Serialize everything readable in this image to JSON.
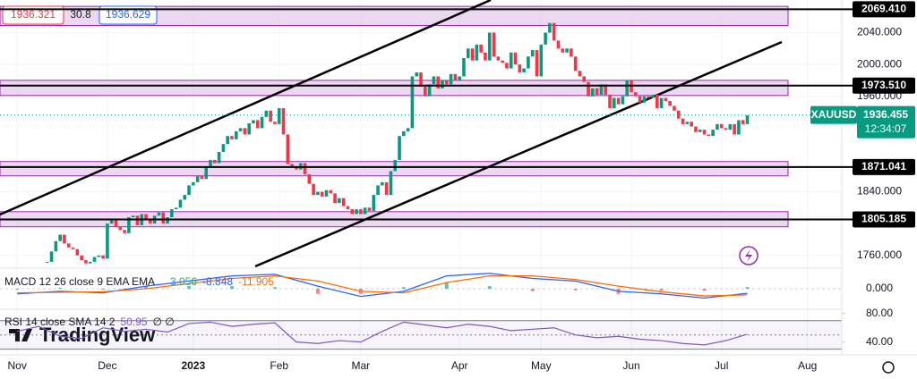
{
  "chart_data": [
    {
      "type": "candlestick",
      "symbol": "XAUUSD",
      "bid": 1936.321,
      "spread": 30.8,
      "ask": 1936.629,
      "last": 1936.455,
      "countdown": "12:34:07",
      "up_color": "#089981",
      "down_color": "#f23645",
      "zone_color": "#e1bee7",
      "xlim": [
        -4,
        192
      ],
      "xticks": [
        {
          "value": 0,
          "label": "Nov"
        },
        {
          "value": 21,
          "label": "Dec"
        },
        {
          "value": 41,
          "label": "2023"
        },
        {
          "value": 61,
          "label": "Feb"
        },
        {
          "value": 80,
          "label": "Mar"
        },
        {
          "value": 103,
          "label": "Apr"
        },
        {
          "value": 122,
          "label": "May"
        },
        {
          "value": 143,
          "label": "Jun"
        },
        {
          "value": 164,
          "label": "Jul"
        },
        {
          "value": 184,
          "label": "Aug"
        }
      ],
      "ylim": [
        1744,
        2081
      ],
      "yticks": [
        {
          "value": 1760,
          "label": "1760.000"
        },
        {
          "value": 1840,
          "label": "1840.000"
        },
        {
          "value": 1960,
          "label": "1960.000"
        },
        {
          "value": 2000,
          "label": "2000.000"
        },
        {
          "value": 2040,
          "label": "2040.000"
        }
      ],
      "levels": [
        {
          "value": 2069.41,
          "label": "2069.410"
        },
        {
          "value": 1973.51,
          "label": "1973.510"
        },
        {
          "value": 1871.041,
          "label": "1871.041"
        },
        {
          "value": 1805.185,
          "label": "1805.185"
        }
      ],
      "zones": [
        [
          2049,
          2073
        ],
        [
          1961,
          1980
        ],
        [
          1860,
          1878
        ],
        [
          1796,
          1815
        ]
      ],
      "x": [
        7,
        8,
        9,
        10,
        11,
        12,
        13,
        14,
        15,
        16,
        17,
        18,
        19,
        20,
        21,
        22,
        23,
        24,
        25,
        26,
        27,
        28,
        29,
        30,
        31,
        32,
        33,
        34,
        35,
        36,
        37,
        38,
        39,
        40,
        41,
        42,
        43,
        44,
        45,
        46,
        47,
        48,
        49,
        50,
        51,
        52,
        53,
        54,
        55,
        56,
        57,
        58,
        59,
        60,
        61,
        62,
        63,
        64,
        65,
        66,
        67,
        68,
        69,
        70,
        71,
        72,
        73,
        74,
        75,
        76,
        77,
        78,
        79,
        80,
        81,
        82,
        83,
        84,
        85,
        86,
        87,
        88,
        89,
        90,
        91,
        92,
        93,
        94,
        95,
        96,
        97,
        98,
        99,
        100,
        101,
        102,
        103,
        104,
        105,
        106,
        107,
        108,
        109,
        110,
        111,
        112,
        113,
        114,
        115,
        116,
        117,
        118,
        119,
        120,
        121,
        122,
        123,
        124,
        125,
        126,
        127,
        128,
        129,
        130,
        131,
        132,
        133,
        134,
        135,
        136,
        137,
        138,
        139,
        140,
        141,
        142,
        143,
        144,
        145,
        146,
        147,
        148,
        149,
        150,
        151,
        152,
        153,
        154,
        155,
        156,
        157,
        158,
        159,
        160,
        161,
        162,
        163,
        164,
        165,
        166,
        167,
        168,
        169,
        170
      ],
      "values": [
        1752,
        1765,
        1778,
        1786,
        1775,
        1770,
        1768,
        1760,
        1754,
        1750,
        1752,
        1758,
        1760,
        1756,
        1800,
        1804,
        1796,
        1792,
        1788,
        1808,
        1810,
        1798,
        1812,
        1806,
        1800,
        1810,
        1814,
        1800,
        1808,
        1818,
        1820,
        1830,
        1836,
        1848,
        1852,
        1860,
        1856,
        1872,
        1880,
        1876,
        1890,
        1900,
        1910,
        1906,
        1916,
        1920,
        1912,
        1926,
        1930,
        1920,
        1934,
        1942,
        1928,
        1925,
        1945,
        1912,
        1875,
        1872,
        1868,
        1876,
        1862,
        1850,
        1836,
        1840,
        1834,
        1842,
        1838,
        1826,
        1832,
        1822,
        1818,
        1812,
        1818,
        1812,
        1820,
        1816,
        1836,
        1848,
        1852,
        1836,
        1866,
        1880,
        1910,
        1916,
        1920,
        1985,
        1990,
        1972,
        1960,
        1975,
        1985,
        1970,
        1980,
        1975,
        1988,
        1980,
        1985,
        2008,
        2020,
        2005,
        2025,
        2015,
        2005,
        2040,
        2010,
        2005,
        2002,
        1995,
        2015,
        2000,
        1990,
        1995,
        2010,
        2018,
        1985,
        2025,
        2040,
        2052,
        2030,
        2020,
        2015,
        2020,
        2010,
        1992,
        1985,
        1978,
        1960,
        1970,
        1962,
        1975,
        1962,
        1945,
        1958,
        1950,
        1960,
        1980,
        1965,
        1960,
        1952,
        1960,
        1958,
        1962,
        1945,
        1958,
        1954,
        1948,
        1942,
        1932,
        1925,
        1928,
        1922,
        1915,
        1918,
        1912,
        1910,
        1918,
        1925,
        1920,
        1918,
        1925,
        1912,
        1930,
        1925,
        1936
      ]
    },
    {
      "type": "macd",
      "title": "MACD 12 26 close 9 EMA EMA",
      "ylim": [
        -40,
        40
      ],
      "yticks": [
        {
          "value": 0,
          "label": "0.000"
        }
      ],
      "x": [
        0,
        10,
        20,
        30,
        40,
        50,
        60,
        70,
        80,
        90,
        100,
        110,
        120,
        130,
        140,
        150,
        160,
        170
      ],
      "series": [
        {
          "color": "#26a69a",
          "values": [
            -2,
            2,
            -2,
            5,
            5,
            5,
            3,
            -10,
            -10,
            3,
            13,
            5,
            -5,
            -3,
            -10,
            -4,
            -4,
            3.056
          ]
        },
        {
          "color": "#2962ff",
          "values": [
            -10,
            -5,
            -8,
            5,
            15,
            25,
            28,
            5,
            -15,
            -5,
            25,
            30,
            20,
            15,
            -5,
            -10,
            -18,
            -8.848
          ]
        },
        {
          "color": "#ff6d00",
          "values": [
            -8,
            -7,
            -6,
            0,
            10,
            20,
            25,
            15,
            -5,
            -8,
            12,
            25,
            25,
            18,
            5,
            -6,
            -14,
            -11.905
          ]
        }
      ]
    },
    {
      "type": "rsi",
      "title": "RSI 14 close SMA 14 2",
      "symbols": "∅ ∅",
      "color": "#7e57c2",
      "ylim": [
        22,
        86
      ],
      "yticks": [
        {
          "value": 80,
          "label": "80.00"
        },
        {
          "value": 40,
          "label": "40.00"
        }
      ],
      "bands": [
        70,
        50,
        30
      ],
      "x": [
        0,
        5,
        10,
        15,
        20,
        25,
        30,
        35,
        40,
        45,
        50,
        55,
        60,
        65,
        70,
        75,
        80,
        85,
        90,
        95,
        100,
        105,
        110,
        115,
        120,
        125,
        130,
        135,
        140,
        145,
        150,
        155,
        160,
        165,
        170
      ],
      "values": [
        55,
        62,
        48,
        45,
        60,
        55,
        58,
        54,
        66,
        68,
        62,
        65,
        67,
        40,
        38,
        42,
        40,
        55,
        68,
        64,
        60,
        65,
        62,
        56,
        58,
        60,
        50,
        46,
        48,
        44,
        42,
        38,
        36,
        42,
        50.95
      ]
    }
  ]
}
